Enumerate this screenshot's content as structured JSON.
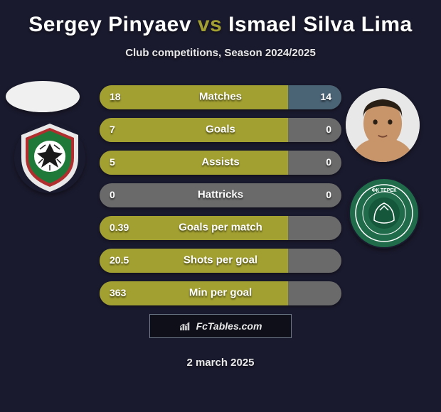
{
  "title_left": "Sergey Pinyaev",
  "title_vs": "vs",
  "title_right": "Ismael Silva Lima",
  "title_color_left": "#ffffff",
  "title_color_vs": "#a2a030",
  "title_color_right": "#ffffff",
  "subtitle": "Club competitions, Season 2024/2025",
  "date": "2 march 2025",
  "colors": {
    "bar_primary": "#a2a030",
    "bar_secondary": "#4a6375",
    "bar_neutral": "#6a6a6a",
    "background": "#1a1a2e",
    "text": "#ffffff"
  },
  "stats": [
    {
      "label": "Matches",
      "left_val": "18",
      "right_val": "14",
      "left_num": 18,
      "right_num": 14,
      "left_pct": 78,
      "right_pct": 22
    },
    {
      "label": "Goals",
      "left_val": "7",
      "right_val": "0",
      "left_num": 7,
      "right_num": 0,
      "left_pct": 78,
      "right_pct": 0
    },
    {
      "label": "Assists",
      "left_val": "5",
      "right_val": "0",
      "left_num": 5,
      "right_num": 0,
      "left_pct": 78,
      "right_pct": 0
    },
    {
      "label": "Hattricks",
      "left_val": "0",
      "right_val": "0",
      "left_num": 0,
      "right_num": 0,
      "left_pct": 0,
      "right_pct": 0
    },
    {
      "label": "Goals per match",
      "left_val": "0.39",
      "right_val": "",
      "left_num": 0.39,
      "right_num": null,
      "left_pct": 78,
      "right_pct": 0
    },
    {
      "label": "Shots per goal",
      "left_val": "20.5",
      "right_val": "",
      "left_num": 20.5,
      "right_num": null,
      "left_pct": 78,
      "right_pct": 0
    },
    {
      "label": "Min per goal",
      "left_val": "363",
      "right_val": "",
      "left_num": 363,
      "right_num": null,
      "left_pct": 78,
      "right_pct": 0
    }
  ],
  "brand": "FcTables.com",
  "player1": {
    "has_photo": false
  },
  "player2": {
    "has_photo": true,
    "skin": "#c8956b",
    "hair": "#2a1f15"
  },
  "club1": {
    "name": "Lokomotiv",
    "outer": "#e8e8e8",
    "mid": "#b02e2e",
    "inner": "#1f7a3a",
    "ball": "#ffffff"
  },
  "club2": {
    "name": "Terek",
    "outer": "#1f6b4a",
    "mid": "#ffffff",
    "inner": "#1f6b4a"
  }
}
